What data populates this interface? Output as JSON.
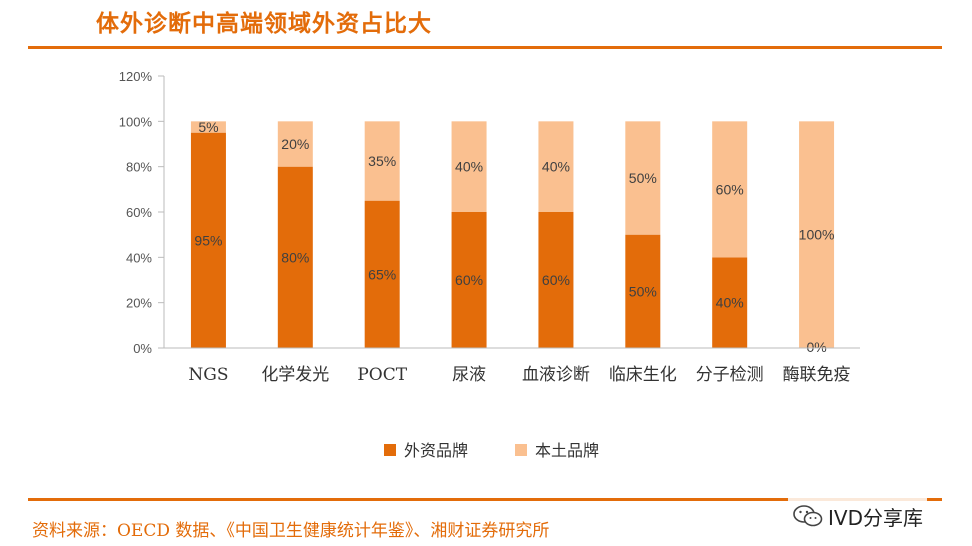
{
  "title": "体外诊断中高端领域外资占比大",
  "source": "资料来源：OECD 数据、《中国卫生健康统计年鉴》、湘财证券研究所",
  "watermark": "IVD分享库",
  "colors": {
    "accent": "#E36C0A",
    "foreign": "#E36C0A",
    "domestic": "#FAC090"
  },
  "chart_data": {
    "type": "bar",
    "stacked": true,
    "categories": [
      "NGS",
      "化学发光",
      "POCT",
      "尿液",
      "血液诊断",
      "临床生化",
      "分子检测",
      "酶联免疫"
    ],
    "series": [
      {
        "name": "外资品牌",
        "values": [
          95,
          80,
          65,
          60,
          60,
          50,
          40,
          0
        ],
        "labels": [
          "95%",
          "80%",
          "65%",
          "60%",
          "60%",
          "50%",
          "40%",
          "0%"
        ],
        "color": "#E36C0A"
      },
      {
        "name": "本土品牌",
        "values": [
          5,
          20,
          35,
          40,
          40,
          50,
          60,
          100
        ],
        "labels": [
          "5%",
          "20%",
          "35%",
          "40%",
          "40%",
          "50%",
          "60%",
          "100%"
        ],
        "color": "#FAC090"
      }
    ],
    "yticks": [
      "0%",
      "20%",
      "40%",
      "60%",
      "80%",
      "100%",
      "120%"
    ],
    "ylim": [
      0,
      120
    ],
    "grid": false,
    "legend": "bottom"
  }
}
